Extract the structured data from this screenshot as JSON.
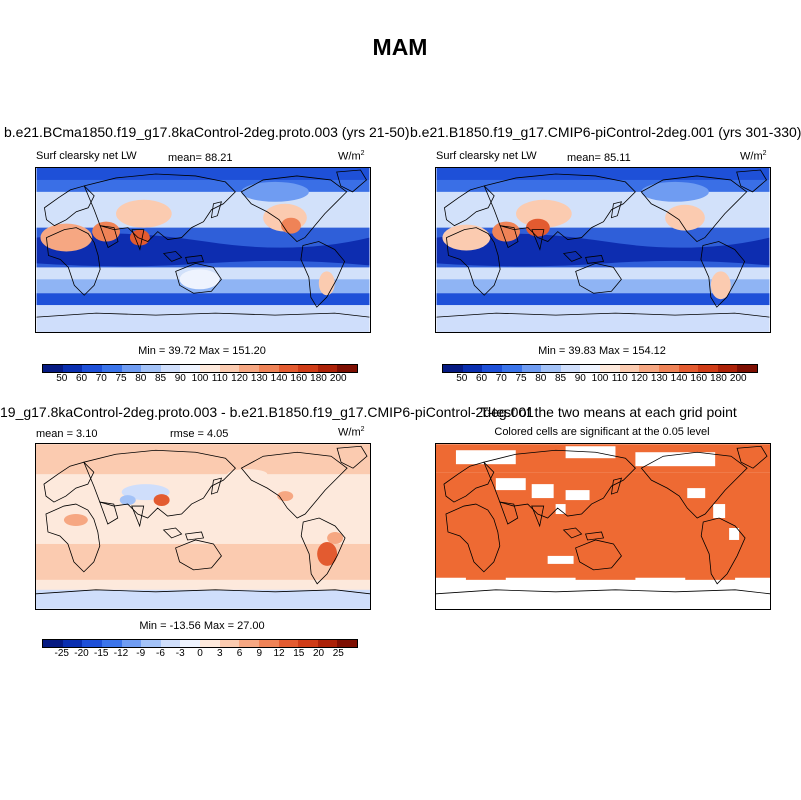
{
  "figure": {
    "title": "MAM"
  },
  "panels": [
    {
      "title": "b.e21.BCma1850.f19_g17.8kaControl-2deg.proto.003 (yrs 21-50)",
      "left_label": "Surf clearsky net LW",
      "center_label": "mean=  88.21",
      "units": "W/m",
      "units_sup": "2",
      "minmax": "Min =  39.72 Max = 151.20"
    },
    {
      "title": "b.e21.B1850.f19_g17.CMIP6-piControl-2deg.001 (yrs 301-330)",
      "left_label": "Surf clearsky net LW",
      "center_label": "mean=  85.11",
      "units": "W/m",
      "units_sup": "2",
      "minmax": "Min =  39.83 Max = 154.12"
    },
    {
      "title": "19_g17.8kaControl-2deg.proto.003 - b.e21.B1850.f19_g17.CMIP6-piControl-2deg.001",
      "left_label": "mean =  3.10",
      "center_label": "rmse =  4.05",
      "units": "W/m",
      "units_sup": "2",
      "minmax": "Min = -13.56 Max =  27.00"
    },
    {
      "title": "T-test of the two means at each grid point",
      "subtitle": "Colored cells are significant at the 0.05 level"
    }
  ],
  "colorbars": {
    "abs": {
      "labels": [
        "50",
        "60",
        "70",
        "75",
        "80",
        "85",
        "90",
        "100",
        "110",
        "120",
        "130",
        "140",
        "160",
        "180",
        "200"
      ],
      "colors": [
        "#061a82",
        "#0a2fb0",
        "#1e50d8",
        "#3b74ea",
        "#6f9cf2",
        "#a3c2f7",
        "#cfdefb",
        "#eef3fe",
        "#fde9dc",
        "#fbcbb0",
        "#f6a782",
        "#ef8357",
        "#e35b30",
        "#cf3c17",
        "#ac2208",
        "#7e0f02"
      ]
    },
    "diff": {
      "labels": [
        "-25",
        "-20",
        "-15",
        "-12",
        "-9",
        "-6",
        "-3",
        "0",
        "3",
        "6",
        "9",
        "12",
        "15",
        "20",
        "25"
      ],
      "colors": [
        "#061a82",
        "#0a2fb0",
        "#1e50d8",
        "#3b74ea",
        "#6f9cf2",
        "#a3c2f7",
        "#cfdefb",
        "#eef3fe",
        "#fde9dc",
        "#fbcbb0",
        "#f6a782",
        "#ef8357",
        "#e35b30",
        "#cf3c17",
        "#ac2208",
        "#7e0f02"
      ]
    }
  },
  "ttest": {
    "significant_color": "#ee6a33"
  }
}
